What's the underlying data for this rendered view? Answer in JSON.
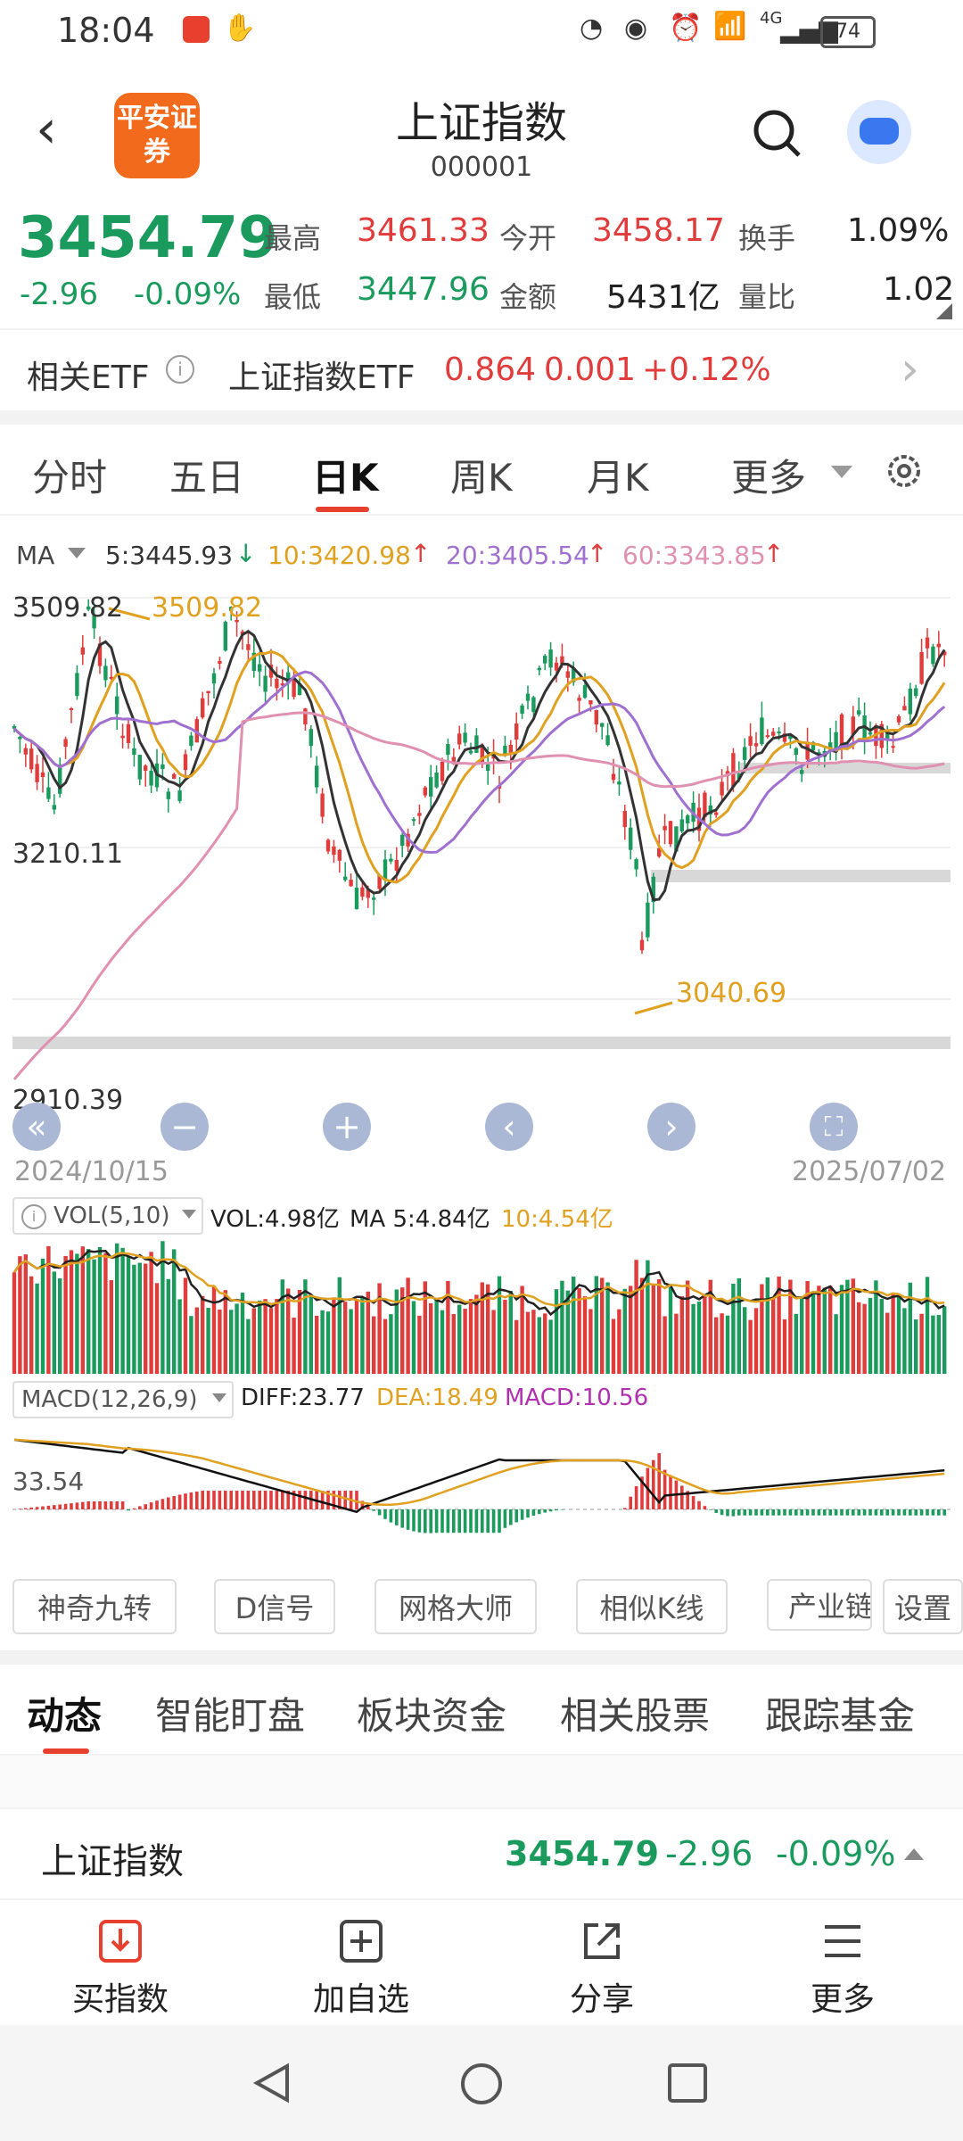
{
  "status_bar": {
    "time": "18:04",
    "battery": "74",
    "net": "4G"
  },
  "header": {
    "title": "上证指数",
    "code": "000001",
    "logo_text": "平安证券"
  },
  "quote": {
    "price": "3454.79",
    "change": "-2.96",
    "change_pct": "-0.09%",
    "high_label": "最高",
    "high": "3461.33",
    "open_label": "今开",
    "open": "3458.17",
    "turnover_label": "换手",
    "turnover": "1.09%",
    "low_label": "最低",
    "low": "3447.96",
    "amount_label": "金额",
    "amount": "5431亿",
    "ratio_label": "量比",
    "ratio": "1.02"
  },
  "etf": {
    "label": "相关ETF",
    "name": "上证指数ETF",
    "price": "0.864",
    "change": "0.001",
    "pct": "+0.12%"
  },
  "period_tabs": [
    "分时",
    "五日",
    "日K",
    "周K",
    "月K",
    "更多"
  ],
  "active_tab": "日K",
  "ma": {
    "label": "MA",
    "ma5": "5:3445.93",
    "ma10": "10:3420.98",
    "ma20": "20:3405.54",
    "ma60": "60:3343.85"
  },
  "price_chart": {
    "high_label": "3509.82",
    "high_marker": "3509.82",
    "mid_label": "3210.11",
    "low_marker": "3040.69",
    "bottom_label": "2910.39",
    "start_date": "2024/10/15",
    "end_date": "2025/07/02"
  },
  "vol": {
    "label": "VOL(5,10)",
    "vol": "VOL:4.98亿",
    "ma5": "MA 5:4.84亿",
    "ma10": "10:4.54亿"
  },
  "macd": {
    "label": "MACD(12,26,9)",
    "diff": "DIFF:23.77",
    "dea": "DEA:18.49",
    "macd": "MACD:10.56",
    "axis": "33.54"
  },
  "tools": [
    "神奇九转",
    "D信号",
    "网格大师",
    "相似K线",
    "产业链",
    "设置"
  ],
  "news_tabs": [
    "动态",
    "智能盯盘",
    "板块资金",
    "相关股票",
    "跟踪基金"
  ],
  "bottom_quote": {
    "name": "上证指数",
    "price": "3454.79",
    "change": "-2.96",
    "pct": "-0.09%"
  },
  "bottom_actions": [
    "买指数",
    "加自选",
    "分享",
    "更多"
  ],
  "colors": {
    "up": "#e03c3c",
    "down": "#1a9a5c",
    "accent": "#e8402e",
    "ma10": "#e0a020",
    "ma20": "#a070d0",
    "ma60": "#e090b0"
  }
}
